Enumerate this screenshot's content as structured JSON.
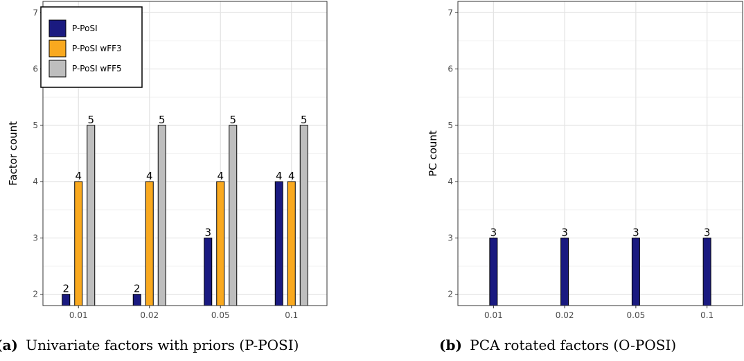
{
  "chart_data": [
    {
      "type": "bar",
      "caption_tag": "(a)",
      "caption": "Univariate factors with priors (P-POSI)",
      "xlabel": "",
      "ylabel": "Factor count",
      "categories": [
        "0.01",
        "0.02",
        "0.05",
        "0.1"
      ],
      "ylim": [
        1.8,
        7.2
      ],
      "yticks": [
        2,
        3,
        4,
        5,
        6,
        7
      ],
      "grid": true,
      "legend": "top-left",
      "series": [
        {
          "name": "P-PoSI",
          "values": [
            2,
            2,
            3,
            4
          ],
          "color": "#1a1a80"
        },
        {
          "name": "P-PoSI wFF3",
          "values": [
            4,
            4,
            4,
            4
          ],
          "color": "#f9a91f"
        },
        {
          "name": "P-PoSI wFF5",
          "values": [
            5,
            5,
            5,
            5
          ],
          "color": "#bebebe"
        }
      ]
    },
    {
      "type": "bar",
      "caption_tag": "(b)",
      "caption": "PCA rotated factors (O-POSI)",
      "xlabel": "",
      "ylabel": "PC count",
      "categories": [
        "0.01",
        "0.02",
        "0.05",
        "0.1"
      ],
      "ylim": [
        1.8,
        7.2
      ],
      "yticks": [
        2,
        3,
        4,
        5,
        6,
        7
      ],
      "grid": true,
      "legend": "none",
      "series": [
        {
          "name": "",
          "values": [
            3,
            3,
            3,
            3
          ],
          "color": "#1a1a80"
        }
      ]
    }
  ]
}
